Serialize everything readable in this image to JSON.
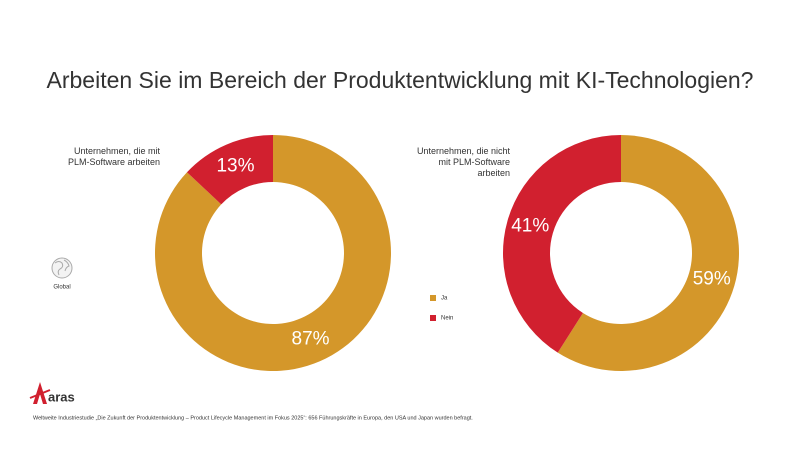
{
  "title": "Arbeiten Sie im Bereich der Produktentwicklung mit KI-Technologien?",
  "chart_data": [
    {
      "type": "pie",
      "subtitle": "Unternehmen, die mit PLM-Software arbeiten",
      "categories": [
        "Ja",
        "Nein"
      ],
      "values": [
        87,
        13
      ],
      "value_labels": [
        "87%",
        "13%"
      ],
      "colors": [
        "#d4972a",
        "#d1202f"
      ]
    },
    {
      "type": "pie",
      "subtitle": "Unternehmen, die nicht mit PLM-Software arbeiten",
      "categories": [
        "Ja",
        "Nein"
      ],
      "values": [
        59,
        41
      ],
      "value_labels": [
        "59%",
        "41%"
      ],
      "colors": [
        "#d4972a",
        "#d1202f"
      ]
    }
  ],
  "region": "Global",
  "logo": "aras",
  "footnote": "Weltweite Industriestudie „Die Zukunft der Produktentwicklung – Product Lifecycle Management im Fokus 2025“: 656 Führungskräfte in Europa, den USA und Japan wurden befragt."
}
